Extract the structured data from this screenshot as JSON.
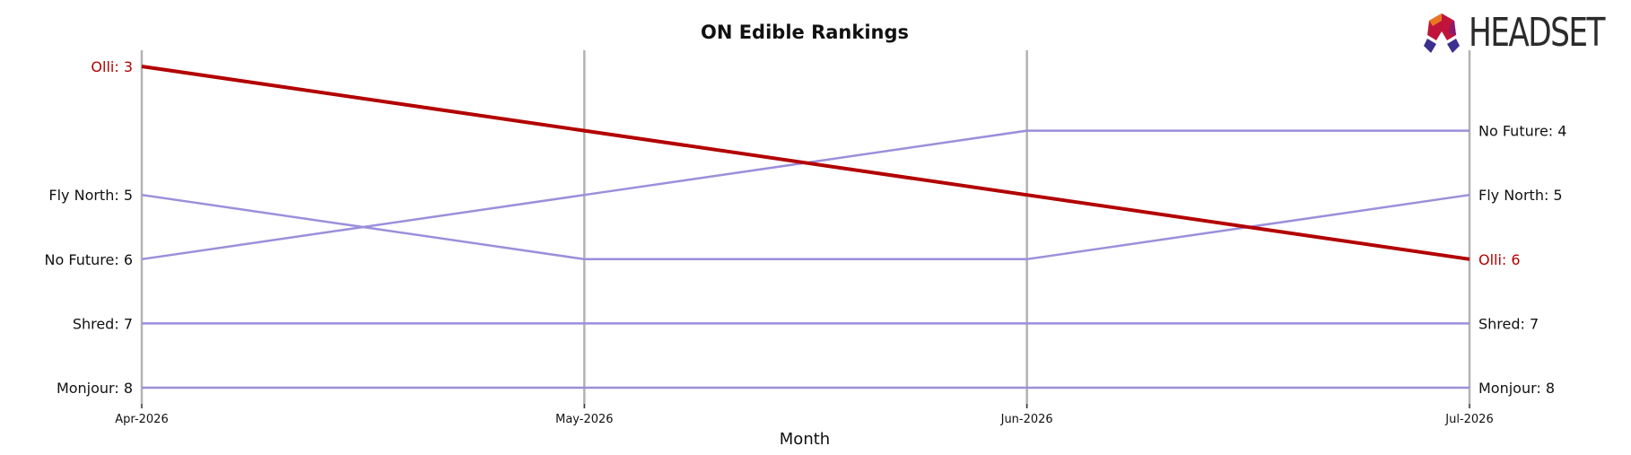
{
  "logo": {
    "text": "HEADSET"
  },
  "chart_data": {
    "type": "line",
    "title": "ON Edible Rankings",
    "xlabel": "Month",
    "ylabel": "",
    "categories": [
      "Apr-2026",
      "May-2026",
      "Jun-2026",
      "Jul-2026"
    ],
    "y_inverted": true,
    "ylim": [
      8.2,
      2.8
    ],
    "grid": "vertical",
    "series": [
      {
        "name": "Monjour",
        "values": [
          8,
          8,
          8,
          8
        ],
        "color": "#9b8fdb",
        "highlight": false
      },
      {
        "name": "Shred",
        "values": [
          7,
          7,
          7,
          7
        ],
        "color": "#9b8fdb",
        "highlight": false
      },
      {
        "name": "No Future",
        "values": [
          6,
          5,
          4,
          4
        ],
        "color": "#9b8fdb",
        "highlight": false
      },
      {
        "name": "Fly North",
        "values": [
          5,
          6,
          6,
          5
        ],
        "color": "#9b8fdb",
        "highlight": false
      },
      {
        "name": "Olli",
        "values": [
          3,
          4,
          5,
          6
        ],
        "color": "#b30000",
        "highlight": true
      }
    ],
    "left_labels": [
      "Olli: 3",
      "Fly North: 5",
      "No Future: 6",
      "Shred: 7",
      "Monjour: 8"
    ],
    "right_labels": [
      "No Future: 4",
      "Fly North: 5",
      "Olli: 6",
      "Shred: 7",
      "Monjour: 8"
    ]
  }
}
